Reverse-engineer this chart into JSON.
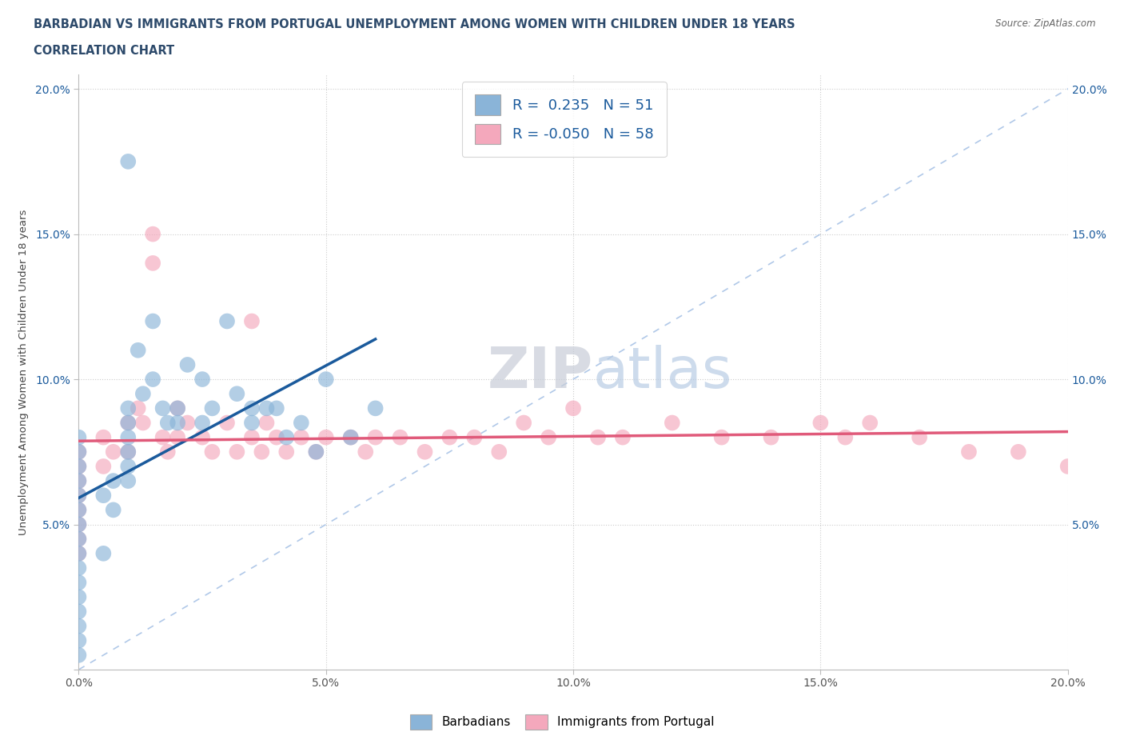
{
  "title_line1": "BARBADIAN VS IMMIGRANTS FROM PORTUGAL UNEMPLOYMENT AMONG WOMEN WITH CHILDREN UNDER 18 YEARS",
  "title_line2": "CORRELATION CHART",
  "source_text": "Source: ZipAtlas.com",
  "ylabel": "Unemployment Among Women with Children Under 18 years",
  "xlim": [
    0.0,
    0.2
  ],
  "ylim": [
    0.0,
    0.205
  ],
  "xticks": [
    0.0,
    0.05,
    0.1,
    0.15,
    0.2
  ],
  "yticks": [
    0.0,
    0.05,
    0.1,
    0.15,
    0.2
  ],
  "xticklabels": [
    "0.0%",
    "5.0%",
    "10.0%",
    "15.0%",
    "20.0%"
  ],
  "yticklabels": [
    "",
    "5.0%",
    "10.0%",
    "15.0%",
    "20.0%"
  ],
  "blue_R": 0.235,
  "blue_N": 51,
  "pink_R": -0.05,
  "pink_N": 58,
  "blue_color": "#8ab4d8",
  "pink_color": "#f4a8bc",
  "blue_line_color": "#1a5a9c",
  "pink_line_color": "#e05a7a",
  "diag_line_color": "#b0c8e8",
  "watermark_ZIP": "ZIP",
  "watermark_atlas": "atlas",
  "blue_scatter_x": [
    0.0,
    0.0,
    0.0,
    0.0,
    0.0,
    0.0,
    0.0,
    0.0,
    0.0,
    0.0,
    0.0,
    0.0,
    0.0,
    0.0,
    0.0,
    0.0,
    0.005,
    0.005,
    0.007,
    0.007,
    0.01,
    0.01,
    0.01,
    0.01,
    0.01,
    0.01,
    0.012,
    0.013,
    0.015,
    0.015,
    0.017,
    0.018,
    0.02,
    0.02,
    0.022,
    0.025,
    0.025,
    0.027,
    0.03,
    0.032,
    0.035,
    0.035,
    0.038,
    0.04,
    0.042,
    0.045,
    0.048,
    0.05,
    0.055,
    0.06,
    0.01
  ],
  "blue_scatter_y": [
    0.07,
    0.075,
    0.08,
    0.065,
    0.06,
    0.055,
    0.05,
    0.045,
    0.04,
    0.035,
    0.03,
    0.025,
    0.02,
    0.015,
    0.01,
    0.005,
    0.06,
    0.04,
    0.065,
    0.055,
    0.09,
    0.085,
    0.08,
    0.075,
    0.07,
    0.065,
    0.11,
    0.095,
    0.12,
    0.1,
    0.09,
    0.085,
    0.09,
    0.085,
    0.105,
    0.1,
    0.085,
    0.09,
    0.12,
    0.095,
    0.09,
    0.085,
    0.09,
    0.09,
    0.08,
    0.085,
    0.075,
    0.1,
    0.08,
    0.09,
    0.175
  ],
  "pink_scatter_x": [
    0.0,
    0.0,
    0.0,
    0.0,
    0.0,
    0.0,
    0.0,
    0.0,
    0.005,
    0.005,
    0.007,
    0.01,
    0.01,
    0.012,
    0.013,
    0.015,
    0.015,
    0.017,
    0.018,
    0.02,
    0.02,
    0.022,
    0.025,
    0.027,
    0.03,
    0.032,
    0.035,
    0.037,
    0.038,
    0.04,
    0.042,
    0.045,
    0.048,
    0.05,
    0.055,
    0.058,
    0.06,
    0.065,
    0.07,
    0.075,
    0.08,
    0.085,
    0.09,
    0.095,
    0.1,
    0.105,
    0.11,
    0.12,
    0.13,
    0.14,
    0.15,
    0.155,
    0.16,
    0.17,
    0.18,
    0.19,
    0.2,
    0.035
  ],
  "pink_scatter_y": [
    0.075,
    0.07,
    0.065,
    0.06,
    0.055,
    0.05,
    0.045,
    0.04,
    0.08,
    0.07,
    0.075,
    0.085,
    0.075,
    0.09,
    0.085,
    0.15,
    0.14,
    0.08,
    0.075,
    0.09,
    0.08,
    0.085,
    0.08,
    0.075,
    0.085,
    0.075,
    0.08,
    0.075,
    0.085,
    0.08,
    0.075,
    0.08,
    0.075,
    0.08,
    0.08,
    0.075,
    0.08,
    0.08,
    0.075,
    0.08,
    0.08,
    0.075,
    0.085,
    0.08,
    0.09,
    0.08,
    0.08,
    0.085,
    0.08,
    0.08,
    0.085,
    0.08,
    0.085,
    0.08,
    0.075,
    0.075,
    0.07,
    0.12
  ]
}
